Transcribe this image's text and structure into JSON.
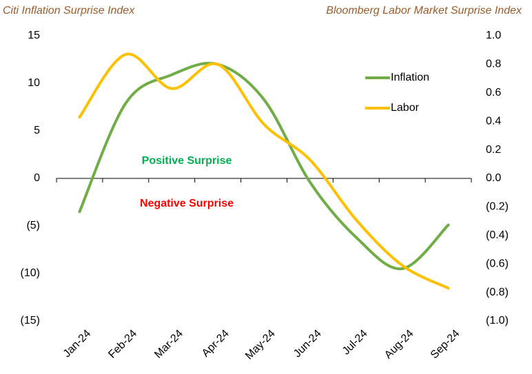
{
  "chart_data": {
    "type": "line",
    "y_title": "Citi Inflation Surprise Index",
    "y2_title": "Bloomberg Labor Market Surprise Index",
    "categories": [
      "Jan-24",
      "Feb-24",
      "Mar-24",
      "Apr-24",
      "May-24",
      "Jun-24",
      "Jul-24",
      "Aug-24",
      "Sep-24"
    ],
    "series": [
      {
        "name": "Inflation",
        "color": "#70ad47",
        "values": [
          -3.5,
          7.9,
          10.9,
          12.0,
          8.3,
          -0.4,
          -6.2,
          -9.5,
          -4.9
        ]
      },
      {
        "name": "Labor",
        "color": "#ffc000",
        "axis": "y2",
        "values": [
          0.43,
          0.87,
          0.63,
          0.8,
          0.38,
          0.13,
          -0.29,
          -0.61,
          -0.77
        ]
      }
    ],
    "ylim": [
      -15,
      15
    ],
    "yticks": [
      15,
      10,
      5,
      0,
      {
        "value": -5,
        "label": "(5)"
      },
      {
        "value": -10,
        "label": "(10)"
      },
      {
        "value": -15,
        "label": "(15)"
      }
    ],
    "y2lim": [
      -1,
      1
    ],
    "y2ticks": [
      {
        "value": 1,
        "label": "1.0"
      },
      0.8,
      0.6,
      0.4,
      0.2,
      {
        "value": 0,
        "label": "0.0"
      },
      {
        "value": -0.2,
        "label": "(0.2)"
      },
      {
        "value": -0.4,
        "label": "(0.4)"
      },
      {
        "value": -0.6,
        "label": "(0.6)"
      },
      {
        "value": -0.8,
        "label": "(0.8)"
      },
      {
        "value": -1,
        "label": "(1.0)"
      }
    ],
    "annotations": [
      {
        "text": "Positive Surprise",
        "color": "#00b050"
      },
      {
        "text": "Negative Surprise",
        "color": "#ff0000"
      }
    ],
    "legend": "upper right",
    "grid": false
  }
}
